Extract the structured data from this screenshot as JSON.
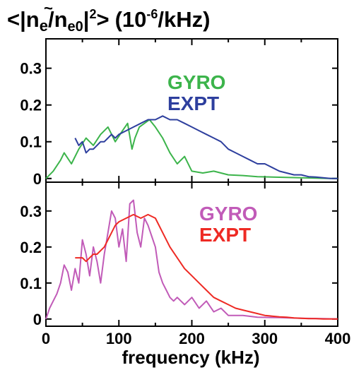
{
  "title": {
    "prefix": "<|n",
    "sub1": "e",
    "mid": "/n",
    "sub2": "e0",
    "mid2": "|",
    "sup": "2",
    "close": ">",
    "unit_open": "(10",
    "unit_sup": "-6",
    "unit_close": "/kHz)"
  },
  "colors": {
    "gyro_top": "#3cb44b",
    "expt_top": "#2e3f9e",
    "gyro_bottom": "#c15bb8",
    "expt_bottom": "#ee2a24",
    "axis": "#000000"
  },
  "chart_data": [
    {
      "type": "line",
      "panel": "top",
      "ylim": [
        -0.01,
        0.38
      ],
      "xlim": [
        0,
        400
      ],
      "yticks": [
        "0",
        "0.1",
        "0.2",
        "0.3"
      ],
      "ytick_values": [
        0,
        0.1,
        0.2,
        0.3
      ],
      "legend": [
        "GYRO",
        "EXPT"
      ],
      "series": [
        {
          "name": "GYRO",
          "x": [
            0,
            10,
            20,
            25,
            35,
            45,
            55,
            65,
            75,
            85,
            95,
            105,
            112,
            118,
            122,
            128,
            135,
            142,
            150,
            160,
            170,
            180,
            190,
            200,
            215,
            230,
            250,
            270,
            290,
            310,
            330,
            350,
            370,
            390,
            400
          ],
          "y": [
            0.0,
            0.02,
            0.05,
            0.07,
            0.04,
            0.08,
            0.11,
            0.09,
            0.12,
            0.14,
            0.1,
            0.13,
            0.15,
            0.08,
            0.11,
            0.14,
            0.15,
            0.16,
            0.14,
            0.11,
            0.07,
            0.04,
            0.06,
            0.02,
            0.015,
            0.02,
            0.01,
            0.008,
            0.005,
            0.004,
            0.003,
            0.002,
            0.001,
            0.0,
            0.0
          ]
        },
        {
          "name": "EXPT",
          "x": [
            40,
            45,
            50,
            55,
            60,
            65,
            70,
            75,
            80,
            85,
            90,
            95,
            100,
            110,
            120,
            130,
            140,
            150,
            160,
            170,
            180,
            190,
            200,
            210,
            220,
            230,
            240,
            250,
            260,
            270,
            280,
            290,
            300,
            310,
            320,
            330,
            340,
            350,
            360,
            370,
            380,
            390,
            400
          ],
          "y": [
            0.11,
            0.09,
            0.1,
            0.07,
            0.08,
            0.08,
            0.09,
            0.1,
            0.1,
            0.11,
            0.12,
            0.11,
            0.12,
            0.13,
            0.14,
            0.15,
            0.16,
            0.16,
            0.17,
            0.16,
            0.16,
            0.15,
            0.14,
            0.13,
            0.12,
            0.11,
            0.1,
            0.08,
            0.07,
            0.06,
            0.05,
            0.04,
            0.04,
            0.03,
            0.02,
            0.015,
            0.01,
            0.01,
            0.005,
            0.004,
            0.002,
            0.0,
            0.0
          ]
        }
      ]
    },
    {
      "type": "line",
      "panel": "bottom",
      "ylim": [
        -0.02,
        0.38
      ],
      "xlim": [
        0,
        400
      ],
      "yticks": [
        "0",
        "0.1",
        "0.2",
        "0.3"
      ],
      "ytick_values": [
        0,
        0.1,
        0.2,
        0.3
      ],
      "xticks": [
        "0",
        "100",
        "200",
        "300",
        "400"
      ],
      "xtick_values": [
        0,
        100,
        200,
        300,
        400
      ],
      "xlabel": "frequency (kHz)",
      "legend": [
        "GYRO",
        "EXPT"
      ],
      "series": [
        {
          "name": "GYRO",
          "x": [
            0,
            5,
            10,
            15,
            20,
            25,
            30,
            35,
            40,
            45,
            50,
            55,
            60,
            65,
            70,
            75,
            80,
            85,
            90,
            95,
            100,
            105,
            110,
            115,
            120,
            125,
            130,
            135,
            140,
            145,
            150,
            155,
            160,
            165,
            170,
            175,
            180,
            190,
            200,
            210,
            220,
            230,
            240,
            250,
            270,
            290,
            320,
            350,
            380,
            400
          ],
          "y": [
            0.0,
            0.03,
            0.05,
            0.07,
            0.1,
            0.15,
            0.13,
            0.08,
            0.14,
            0.1,
            0.22,
            0.18,
            0.12,
            0.2,
            0.16,
            0.1,
            0.18,
            0.24,
            0.3,
            0.28,
            0.2,
            0.25,
            0.16,
            0.32,
            0.33,
            0.24,
            0.2,
            0.28,
            0.26,
            0.23,
            0.2,
            0.13,
            0.1,
            0.08,
            0.06,
            0.05,
            0.06,
            0.04,
            0.06,
            0.03,
            0.05,
            0.02,
            0.03,
            0.01,
            0.01,
            0.005,
            0.004,
            0.002,
            0.001,
            0.0
          ]
        },
        {
          "name": "EXPT",
          "x": [
            40,
            45,
            50,
            55,
            60,
            65,
            70,
            75,
            80,
            85,
            90,
            95,
            100,
            110,
            120,
            130,
            140,
            150,
            160,
            170,
            180,
            190,
            200,
            210,
            220,
            230,
            240,
            250,
            260,
            270,
            280,
            290,
            300,
            310,
            320,
            330,
            340,
            350,
            360,
            370,
            380,
            390,
            400
          ],
          "y": [
            0.17,
            0.17,
            0.17,
            0.16,
            0.17,
            0.18,
            0.18,
            0.19,
            0.2,
            0.22,
            0.24,
            0.26,
            0.27,
            0.28,
            0.29,
            0.28,
            0.29,
            0.28,
            0.24,
            0.2,
            0.17,
            0.14,
            0.12,
            0.1,
            0.08,
            0.06,
            0.05,
            0.04,
            0.03,
            0.025,
            0.02,
            0.015,
            0.01,
            0.008,
            0.006,
            0.005,
            0.003,
            0.002,
            0.001,
            0.001,
            0.0,
            0.0,
            0.0
          ]
        }
      ]
    }
  ]
}
